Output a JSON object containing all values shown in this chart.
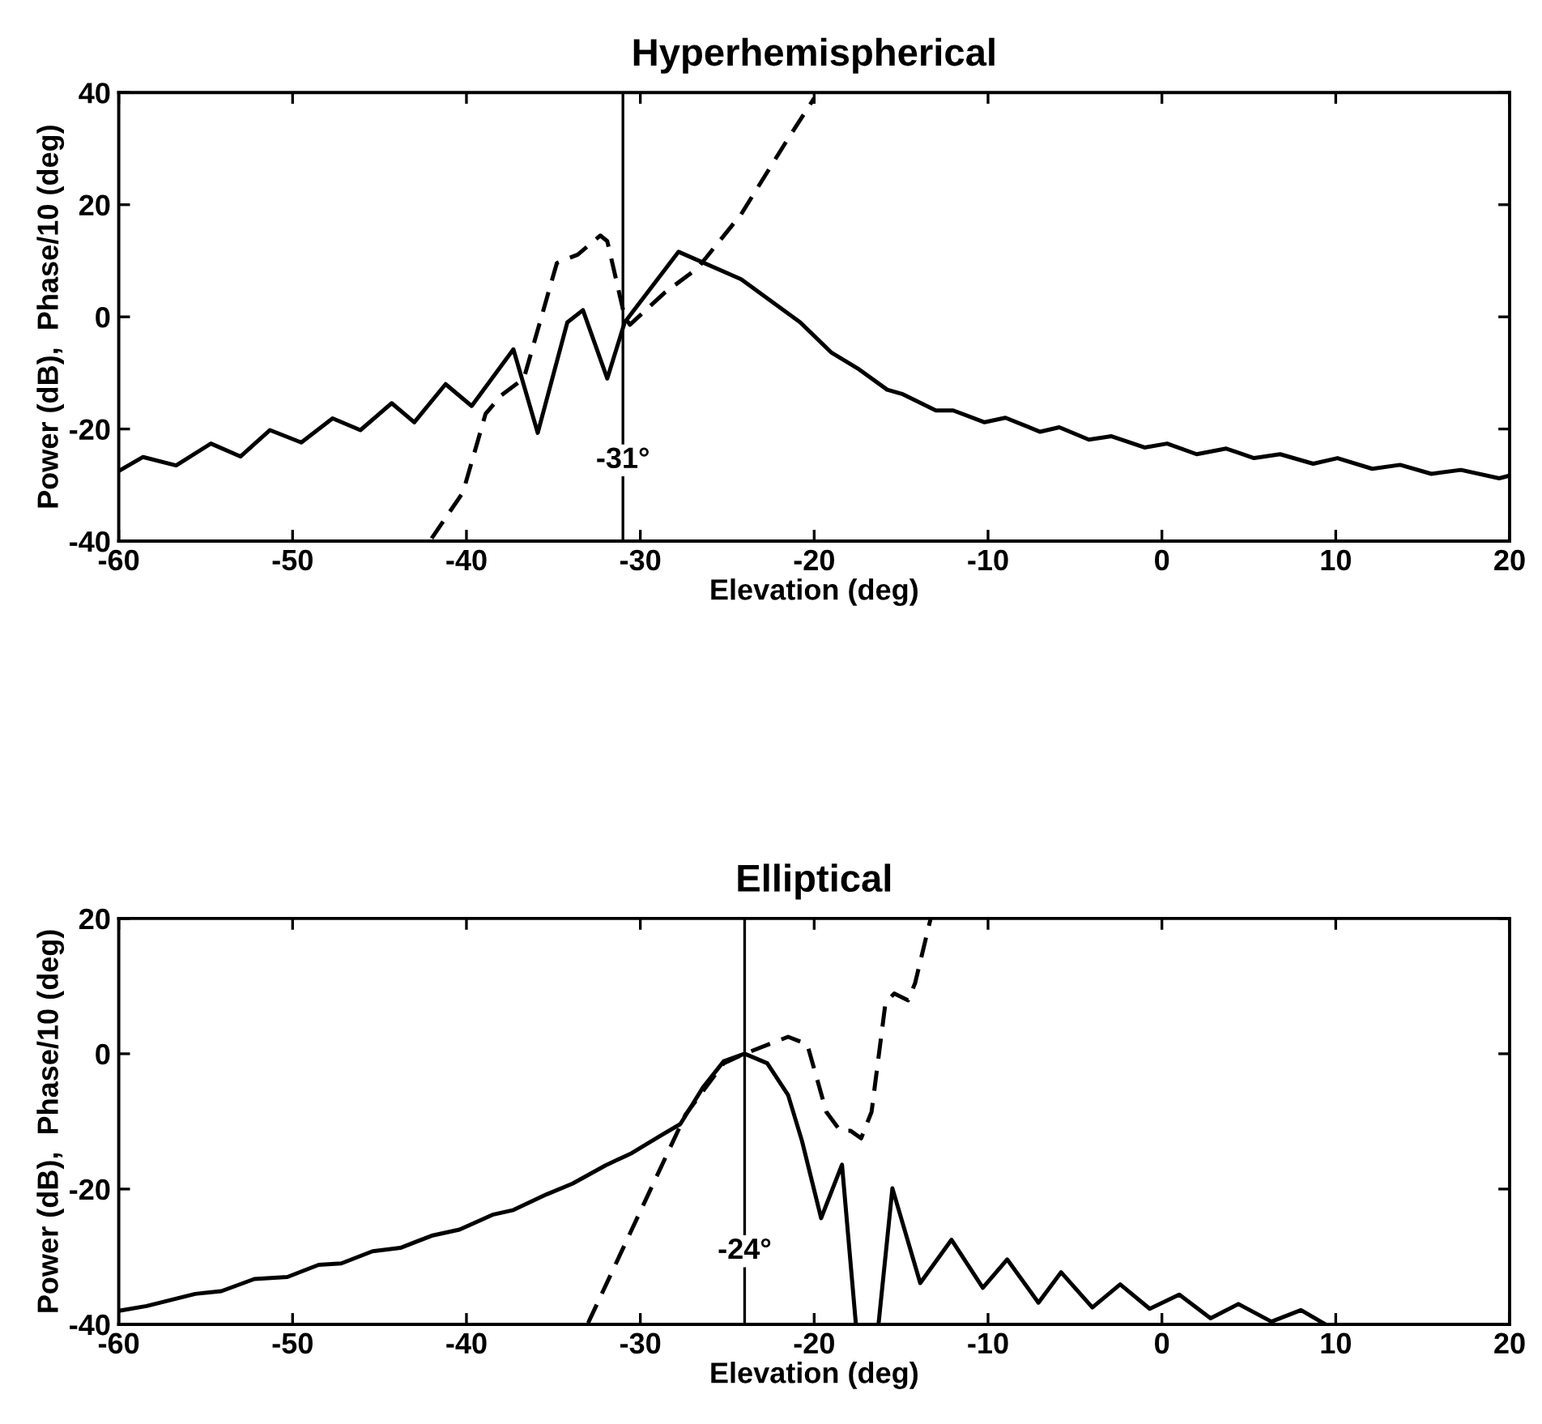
{
  "chart_data": [
    {
      "type": "line",
      "title": "Hyperhemispherical",
      "xlabel": "Elevation (deg)",
      "ylabel": "Power (dB),  Phase/10 (deg)",
      "xlim": [
        -60,
        20
      ],
      "ylim": [
        -40,
        40
      ],
      "xticks": [
        -60,
        -50,
        -40,
        -30,
        -20,
        -10,
        0,
        10,
        20
      ],
      "yticks": [
        -40,
        -20,
        0,
        20,
        40
      ],
      "ref_lines": [
        {
          "axis": "x",
          "value": -31,
          "label": "-31°",
          "color": "#000000"
        }
      ],
      "series": [
        {
          "color": "#000000",
          "line_style": "solid",
          "x": [
            -60,
            -58.6,
            -56.7,
            -54.7,
            -53,
            -51.3,
            -49.5,
            -47.7,
            -46.1,
            -44.3,
            -43,
            -41.2,
            -39.7,
            -37.3,
            -35.9,
            -34.2,
            -33.3,
            -31.9,
            -30.9,
            -27.8,
            -24.2,
            -20.8,
            -19,
            -17.5,
            -15.8,
            -14.9,
            -13,
            -12,
            -10.2,
            -9,
            -7,
            -5.9,
            -4.2,
            -2.9,
            -1,
            0.3,
            2,
            3.7,
            5.3,
            6.8,
            8.7,
            10.1,
            12.1,
            13.7,
            15.5,
            17.2,
            19.4,
            20
          ],
          "values": [
            -27.5,
            -25,
            -26.5,
            -22.6,
            -24.9,
            -20.2,
            -22.4,
            -18.1,
            -20.2,
            -15.4,
            -18.8,
            -12,
            -15.9,
            -5.8,
            -20.7,
            -1,
            1.2,
            -11,
            -1,
            11.6,
            6.7,
            -1,
            -6.4,
            -9.2,
            -13,
            -13.8,
            -16.7,
            -16.7,
            -18.8,
            -18,
            -20.5,
            -19.7,
            -21.9,
            -21.3,
            -23.3,
            -22.6,
            -24.5,
            -23.5,
            -25.2,
            -24.5,
            -26.2,
            -25.2,
            -27.1,
            -26.4,
            -28,
            -27.3,
            -28.8,
            -28.3
          ]
        },
        {
          "color": "#000000",
          "line_style": "dashed",
          "x": [
            -42,
            -40.2,
            -38.9,
            -38,
            -36.7,
            -34.8,
            -33.6,
            -32.3,
            -31.9,
            -30.9,
            -30.6,
            -28.6,
            -26.7,
            -24.2,
            -21.7,
            -20
          ],
          "values": [
            -39.5,
            -31.3,
            -17.3,
            -14,
            -11,
            9.6,
            11.1,
            14.5,
            13.5,
            0,
            -1.4,
            4.3,
            8.7,
            18.3,
            30.8,
            39
          ]
        }
      ]
    },
    {
      "type": "line",
      "title": "Elliptical",
      "xlabel": "Elevation (deg)",
      "ylabel": "Power (dB),  Phase/10 (deg)",
      "xlim": [
        -60,
        20
      ],
      "ylim": [
        -40,
        20
      ],
      "xticks": [
        -60,
        -50,
        -40,
        -30,
        -20,
        -10,
        0,
        10,
        20
      ],
      "yticks": [
        -40,
        -20,
        0,
        20
      ],
      "ref_lines": [
        {
          "axis": "x",
          "value": -24,
          "label": "-24°",
          "color": "#000000"
        }
      ],
      "series": [
        {
          "color": "#000000",
          "line_style": "solid",
          "x": [
            -60,
            -58.4,
            -55.6,
            -54.1,
            -52.2,
            -50.3,
            -48.5,
            -47.2,
            -45.4,
            -43.8,
            -42,
            -40.4,
            -38.5,
            -37.3,
            -35.4,
            -33.9,
            -32,
            -30.5,
            -28.9,
            -27.7,
            -26.4,
            -25.2,
            -24,
            -22.7,
            -21.5,
            -20.7,
            -19.6,
            -18.4,
            -17.6,
            null,
            -16.3,
            -15.5,
            -13.9,
            -12.1,
            -10.3,
            -8.9,
            -7.1,
            -5.8,
            -4,
            -2.4,
            -0.7,
            1,
            2.8,
            4.4,
            6.3,
            8,
            9.4
          ],
          "values": [
            -38,
            -37.3,
            -35.5,
            -35.1,
            -33.3,
            -33,
            -31.2,
            -31,
            -29.2,
            -28.7,
            -26.9,
            -26,
            -23.8,
            -23.1,
            -20.8,
            -19.2,
            -16.5,
            -14.7,
            -12.2,
            -10.4,
            -5,
            -1.1,
            0,
            -1.4,
            -6.1,
            -12.9,
            -24.3,
            -16.4,
            -40,
            null,
            -40,
            -19.9,
            -33.9,
            -27.5,
            -34.6,
            -30.4,
            -36.8,
            -32.3,
            -37.5,
            -34.1,
            -37.7,
            -35.6,
            -39.1,
            -37,
            -39.6,
            -37.9,
            -40
          ]
        },
        {
          "color": "#000000",
          "line_style": "dashed",
          "x": [
            -33,
            -27.4,
            -25.2,
            -24,
            -21.5,
            -20.4,
            -19.3,
            -18.5,
            -17.9,
            -17.3,
            -16.7,
            -15.9,
            -15.4,
            -14.6,
            -14.2,
            -13.3
          ],
          "values": [
            -39.8,
            -9,
            -1.4,
            0,
            2.5,
            1.4,
            -8.6,
            -11.4,
            -11.4,
            -12.5,
            -8.6,
            7.5,
            8.9,
            7.9,
            10.4,
            20
          ]
        }
      ]
    }
  ]
}
